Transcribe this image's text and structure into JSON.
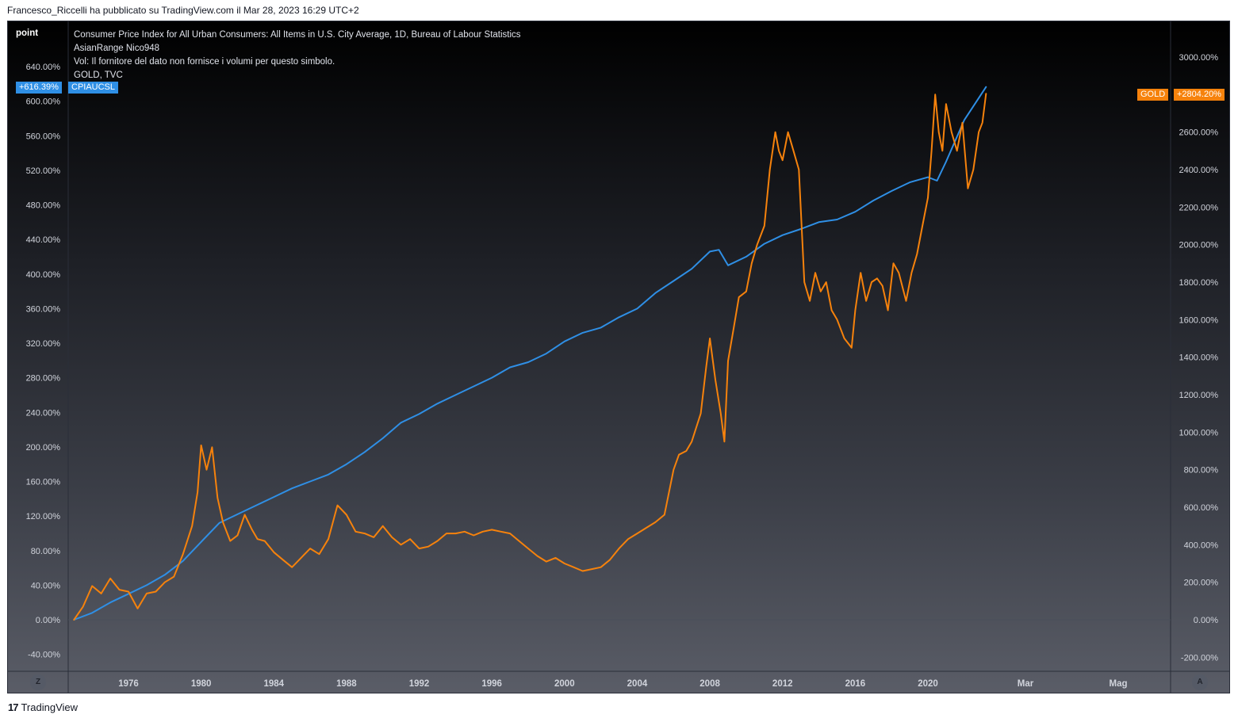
{
  "header": {
    "credit": "Francesco_Riccelli ha pubblicato su TradingView.com il Mar 28, 2023 16:29 UTC+2"
  },
  "footer": {
    "logo_mark": "17",
    "logo_text": "TradingView"
  },
  "chart": {
    "unit_label": "point",
    "legend": [
      "Consumer Price Index for All Urban Consumers: All Items in U.S. City Average, 1D, Bureau of Labour Statistics",
      "AsianRange Nico948",
      "Vol: Il fornitore del dato non fornisce i volumi per questo simbolo.",
      "GOLD, TVC"
    ],
    "left_badge_value": "+616.39%",
    "left_badge_name": "CPIAUCSL",
    "right_badge_name": "GOLD",
    "right_badge_value": "+2804.20%",
    "left_button": "Z",
    "right_button": "A",
    "colors": {
      "cpi": "#2f8fe5",
      "gold": "#f6820c",
      "badge_blue": "#2f8fe5",
      "badge_orange": "#f6820c"
    }
  },
  "chart_data": {
    "type": "line",
    "x_tick_labels": [
      "1976",
      "1980",
      "1984",
      "1988",
      "1992",
      "1996",
      "2000",
      "2004",
      "2008",
      "2012",
      "2016",
      "2020",
      "Mar",
      "Mag"
    ],
    "left_axis": {
      "ticks": [
        "640.00%",
        "600.00%",
        "560.00%",
        "520.00%",
        "480.00%",
        "440.00%",
        "400.00%",
        "360.00%",
        "320.00%",
        "280.00%",
        "240.00%",
        "200.00%",
        "160.00%",
        "120.00%",
        "80.00%",
        "40.00%",
        "0.00%",
        "-40.00%"
      ],
      "tick_values": [
        640,
        600,
        560,
        520,
        480,
        440,
        400,
        360,
        320,
        280,
        240,
        200,
        160,
        120,
        80,
        40,
        0,
        -40
      ],
      "range": [
        -60,
        670
      ]
    },
    "right_axis": {
      "ticks": [
        "3000.00%",
        "2800.00%",
        "2600.00%",
        "2400.00%",
        "2200.00%",
        "2000.00%",
        "1800.00%",
        "1600.00%",
        "1400.00%",
        "1200.00%",
        "1000.00%",
        "800.00%",
        "600.00%",
        "400.00%",
        "200.00%",
        "0.00%",
        "-200.00%"
      ],
      "tick_values": [
        3000,
        2800,
        2600,
        2400,
        2200,
        2000,
        1800,
        1600,
        1400,
        1200,
        1000,
        800,
        600,
        400,
        200,
        0,
        -200
      ],
      "range": [
        -220,
        3100
      ]
    },
    "series": [
      {
        "name": "CPIAUCSL",
        "axis": "left",
        "x": [
          1973.0,
          1974.0,
          1975.0,
          1976.0,
          1977.0,
          1978.0,
          1979.0,
          1980.0,
          1981.0,
          1982.0,
          1983.0,
          1984.0,
          1985.0,
          1986.0,
          1987.0,
          1988.0,
          1989.0,
          1990.0,
          1991.0,
          1992.0,
          1993.0,
          1994.0,
          1995.0,
          1996.0,
          1997.0,
          1998.0,
          1999.0,
          2000.0,
          2001.0,
          2002.0,
          2003.0,
          2004.0,
          2005.0,
          2006.0,
          2007.0,
          2008.0,
          2008.5,
          2009.0,
          2010.0,
          2011.0,
          2012.0,
          2013.0,
          2014.0,
          2015.0,
          2016.0,
          2017.0,
          2018.0,
          2019.0,
          2020.0,
          2020.5,
          2021.0,
          2022.0,
          2023.2
        ],
        "y": [
          0,
          8,
          20,
          30,
          40,
          52,
          68,
          90,
          112,
          122,
          132,
          142,
          152,
          160,
          168,
          180,
          194,
          210,
          228,
          238,
          250,
          260,
          270,
          280,
          292,
          298,
          308,
          322,
          332,
          338,
          350,
          360,
          378,
          392,
          406,
          426,
          428,
          410,
          420,
          435,
          445,
          452,
          460,
          463,
          472,
          485,
          496,
          506,
          512,
          508,
          530,
          578,
          616.39
        ]
      },
      {
        "name": "GOLD",
        "axis": "right",
        "x": [
          1973.0,
          1973.5,
          1974.0,
          1974.5,
          1975.0,
          1975.5,
          1976.0,
          1976.5,
          1977.0,
          1977.5,
          1978.0,
          1978.5,
          1979.0,
          1979.5,
          1979.8,
          1980.0,
          1980.3,
          1980.6,
          1980.9,
          1981.2,
          1981.6,
          1982.0,
          1982.4,
          1982.8,
          1983.1,
          1983.5,
          1984.0,
          1984.5,
          1985.0,
          1985.5,
          1986.0,
          1986.5,
          1987.0,
          1987.5,
          1988.0,
          1988.5,
          1989.0,
          1989.5,
          1990.0,
          1990.5,
          1991.0,
          1991.5,
          1992.0,
          1992.5,
          1993.0,
          1993.5,
          1994.0,
          1994.5,
          1995.0,
          1995.5,
          1996.0,
          1996.5,
          1997.0,
          1997.5,
          1998.0,
          1998.5,
          1999.0,
          1999.5,
          2000.0,
          2000.5,
          2001.0,
          2001.5,
          2002.0,
          2002.5,
          2003.0,
          2003.5,
          2004.0,
          2004.5,
          2005.0,
          2005.5,
          2006.0,
          2006.3,
          2006.7,
          2007.0,
          2007.5,
          2007.8,
          2008.0,
          2008.3,
          2008.6,
          2008.8,
          2009.0,
          2009.3,
          2009.6,
          2010.0,
          2010.3,
          2010.6,
          2011.0,
          2011.3,
          2011.6,
          2011.8,
          2012.0,
          2012.3,
          2012.6,
          2012.9,
          2013.2,
          2013.5,
          2013.8,
          2014.1,
          2014.4,
          2014.7,
          2015.0,
          2015.4,
          2015.8,
          2016.0,
          2016.3,
          2016.6,
          2016.9,
          2017.2,
          2017.5,
          2017.8,
          2018.1,
          2018.4,
          2018.8,
          2019.1,
          2019.4,
          2019.7,
          2020.0,
          2020.2,
          2020.4,
          2020.6,
          2020.8,
          2021.0,
          2021.3,
          2021.6,
          2021.9,
          2022.2,
          2022.5,
          2022.8,
          2023.0,
          2023.2
        ],
        "y": [
          0,
          70,
          180,
          140,
          220,
          160,
          150,
          60,
          140,
          150,
          200,
          230,
          350,
          500,
          680,
          930,
          800,
          920,
          650,
          520,
          420,
          450,
          560,
          480,
          430,
          420,
          360,
          320,
          280,
          330,
          380,
          350,
          430,
          610,
          560,
          470,
          460,
          440,
          500,
          440,
          400,
          430,
          380,
          390,
          420,
          460,
          460,
          470,
          450,
          470,
          480,
          470,
          460,
          420,
          380,
          340,
          310,
          330,
          300,
          280,
          260,
          270,
          280,
          320,
          380,
          430,
          460,
          490,
          520,
          560,
          800,
          880,
          900,
          950,
          1100,
          1350,
          1500,
          1280,
          1100,
          950,
          1380,
          1550,
          1720,
          1750,
          1900,
          2000,
          2100,
          2400,
          2600,
          2500,
          2450,
          2600,
          2500,
          2400,
          1800,
          1700,
          1850,
          1750,
          1800,
          1650,
          1600,
          1500,
          1450,
          1650,
          1850,
          1700,
          1800,
          1820,
          1780,
          1650,
          1900,
          1850,
          1700,
          1850,
          1950,
          2100,
          2250,
          2500,
          2800,
          2600,
          2500,
          2750,
          2600,
          2500,
          2650,
          2300,
          2400,
          2600,
          2650,
          2804.2
        ]
      }
    ]
  }
}
